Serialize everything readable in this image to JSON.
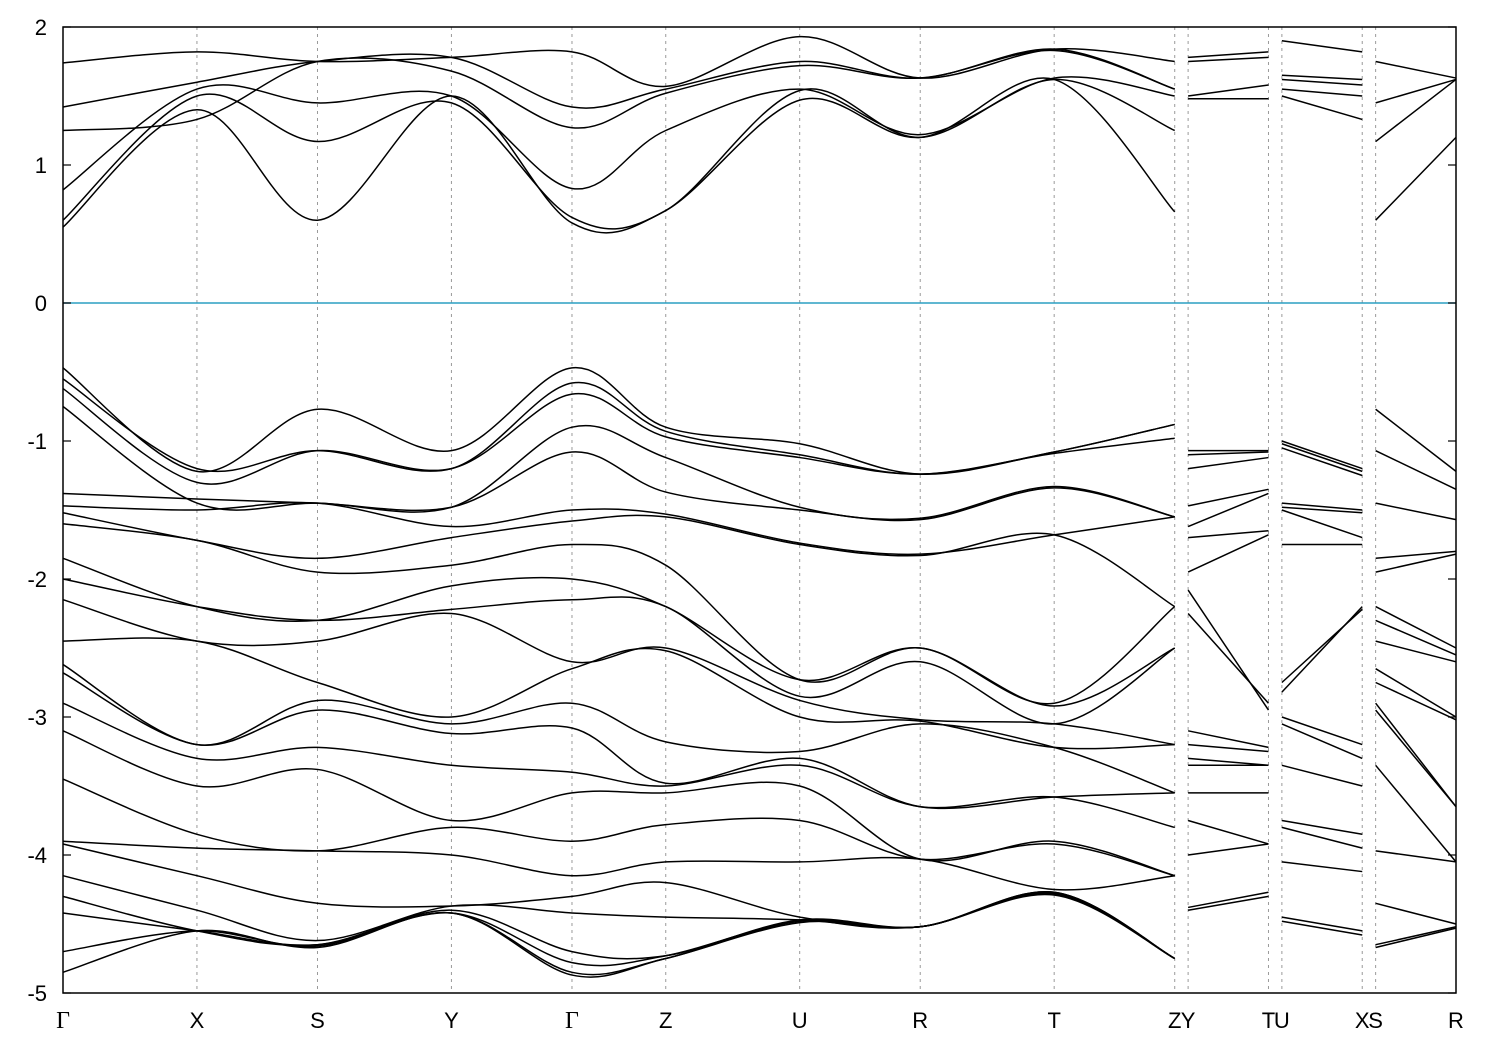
{
  "chart_data": {
    "type": "line",
    "title": "",
    "xlabel": "",
    "ylabel": "",
    "ylim": [
      -5,
      2
    ],
    "yticks": [
      "2",
      "1",
      "0",
      "-1",
      "-2",
      "-3",
      "-4",
      "-5"
    ],
    "ytick_values": [
      2,
      1,
      0,
      -1,
      -2,
      -3,
      -4,
      -5
    ],
    "grid": "vertical dotted lines at high-symmetry points",
    "legend": "none",
    "fermi_level": 0,
    "fermi_color": "#2b9fc2",
    "kpath": [
      {
        "label": "Γ",
        "x": 0.0
      },
      {
        "label": "X",
        "x": 1.0
      },
      {
        "label": "S",
        "x": 1.9
      },
      {
        "label": "Y",
        "x": 2.9
      },
      {
        "label": "Γ",
        "x": 3.8
      },
      {
        "label": "Z",
        "x": 4.5
      },
      {
        "label": "U",
        "x": 5.5
      },
      {
        "label": "R",
        "x": 6.4
      },
      {
        "label": "T",
        "x": 7.4
      },
      {
        "label": "Z",
        "x": 8.3
      },
      {
        "label": "Y",
        "x": 8.4
      },
      {
        "label": "T",
        "x": 9.0
      },
      {
        "label": "U",
        "x": 9.1
      },
      {
        "label": "X",
        "x": 9.7
      },
      {
        "label": "S",
        "x": 9.8
      },
      {
        "label": "R",
        "x": 10.4
      }
    ],
    "xlim": [
      0,
      10.4
    ],
    "segments": [
      {
        "x": [
          0.0,
          8.3
        ],
        "bands": [
          [
            0.55,
            1.4,
            0.6,
            1.5,
            0.58,
            0.67,
            1.47,
            1.2,
            1.62,
            0.66
          ],
          [
            0.6,
            1.5,
            1.17,
            1.45,
            0.62,
            0.67,
            1.54,
            1.2,
            1.62,
            1.25
          ],
          [
            0.82,
            1.55,
            1.45,
            1.5,
            0.83,
            1.25,
            1.55,
            1.22,
            1.63,
            1.5
          ],
          [
            1.25,
            1.33,
            1.75,
            1.68,
            1.27,
            1.52,
            1.72,
            1.63,
            1.83,
            1.55
          ],
          [
            1.42,
            1.6,
            1.75,
            1.78,
            1.42,
            1.55,
            1.75,
            1.63,
            1.84,
            1.55
          ],
          [
            1.74,
            1.82,
            1.75,
            1.78,
            1.82,
            1.57,
            1.93,
            1.63,
            1.84,
            1.75
          ],
          [
            -0.47,
            -1.22,
            -0.77,
            -1.07,
            -0.47,
            -0.9,
            -1.02,
            -1.24,
            -1.08,
            -0.88
          ],
          [
            -0.55,
            -1.2,
            -1.07,
            -1.2,
            -0.58,
            -0.93,
            -1.1,
            -1.24,
            -1.08,
            -0.88
          ],
          [
            -0.62,
            -1.3,
            -1.07,
            -1.2,
            -0.66,
            -0.97,
            -1.12,
            -1.24,
            -1.09,
            -0.98
          ],
          [
            -0.75,
            -1.45,
            -1.45,
            -1.48,
            -0.9,
            -1.12,
            -1.48,
            -1.56,
            -1.33,
            -1.55
          ],
          [
            -1.38,
            -1.42,
            -1.45,
            -1.48,
            -1.08,
            -1.37,
            -1.5,
            -1.57,
            -1.34,
            -1.55
          ],
          [
            -1.47,
            -1.5,
            -1.45,
            -1.62,
            -1.5,
            -1.53,
            -1.74,
            -1.82,
            -1.68,
            -1.55
          ],
          [
            -1.52,
            -1.72,
            -1.85,
            -1.7,
            -1.58,
            -1.55,
            -1.75,
            -1.83,
            -1.68,
            -2.2
          ],
          [
            -1.6,
            -1.72,
            -1.95,
            -1.9,
            -1.75,
            -1.9,
            -2.73,
            -2.5,
            -2.9,
            -2.2
          ],
          [
            -1.85,
            -2.2,
            -2.3,
            -2.05,
            -2.0,
            -2.2,
            -2.73,
            -2.5,
            -2.92,
            -2.5
          ],
          [
            -2.0,
            -2.2,
            -2.3,
            -2.22,
            -2.15,
            -2.2,
            -2.85,
            -2.6,
            -3.05,
            -2.5
          ],
          [
            -2.15,
            -2.45,
            -2.45,
            -2.25,
            -2.6,
            -2.5,
            -2.88,
            -3.02,
            -3.05,
            -3.2
          ],
          [
            -2.45,
            -2.45,
            -2.75,
            -3.0,
            -2.65,
            -2.52,
            -3.0,
            -3.03,
            -3.22,
            -3.2
          ],
          [
            -2.62,
            -3.2,
            -2.88,
            -3.05,
            -2.9,
            -3.18,
            -3.25,
            -3.05,
            -3.22,
            -3.55
          ],
          [
            -2.68,
            -3.2,
            -2.95,
            -3.12,
            -3.08,
            -3.48,
            -3.3,
            -3.65,
            -3.58,
            -3.55
          ],
          [
            -2.9,
            -3.3,
            -3.22,
            -3.35,
            -3.4,
            -3.5,
            -3.35,
            -3.65,
            -3.58,
            -3.8
          ],
          [
            -3.1,
            -3.5,
            -3.38,
            -3.75,
            -3.55,
            -3.55,
            -3.5,
            -4.03,
            -3.9,
            -4.15
          ],
          [
            -3.45,
            -3.85,
            -3.97,
            -3.8,
            -3.9,
            -3.78,
            -3.75,
            -4.03,
            -3.92,
            -4.15
          ],
          [
            -3.9,
            -3.95,
            -3.97,
            -4.0,
            -4.15,
            -4.05,
            -4.05,
            -4.03,
            -4.25,
            -4.15
          ],
          [
            -3.92,
            -4.15,
            -4.35,
            -4.37,
            -4.3,
            -4.2,
            -4.45,
            -4.52,
            -4.27,
            -4.75
          ],
          [
            -4.15,
            -4.4,
            -4.62,
            -4.37,
            -4.42,
            -4.45,
            -4.47,
            -4.52,
            -4.27,
            -4.75
          ],
          [
            -4.3,
            -4.55,
            -4.65,
            -4.4,
            -4.7,
            -4.73,
            -4.47,
            -4.52,
            -4.28,
            -4.75
          ],
          [
            -4.42,
            -4.55,
            -4.65,
            -4.42,
            -4.78,
            -4.73,
            -4.48,
            -4.52,
            -4.28,
            -4.75
          ],
          [
            -4.7,
            -4.55,
            -4.66,
            -4.42,
            -4.85,
            -4.75,
            -4.48,
            -4.52,
            -4.28,
            -4.75
          ],
          [
            -4.85,
            -4.55,
            -4.67,
            -4.42,
            -4.87,
            -4.75,
            -4.49,
            -4.52,
            -4.29,
            -4.75
          ]
        ]
      },
      {
        "x": [
          8.4,
          9.0
        ],
        "bands": [
          [
            1.48,
            1.48
          ],
          [
            1.5,
            1.58
          ],
          [
            1.75,
            1.78
          ],
          [
            1.78,
            1.82
          ],
          [
            -1.07,
            -1.07
          ],
          [
            -1.1,
            -1.08
          ],
          [
            -1.2,
            -1.12
          ],
          [
            -1.47,
            -1.35
          ],
          [
            -1.62,
            -1.38
          ],
          [
            -1.7,
            -1.65
          ],
          [
            -1.95,
            -1.68
          ],
          [
            -2.08,
            -2.95
          ],
          [
            -2.25,
            -2.9
          ],
          [
            -3.1,
            -3.22
          ],
          [
            -3.2,
            -3.25
          ],
          [
            -3.3,
            -3.35
          ],
          [
            -3.35,
            -3.35
          ],
          [
            -3.55,
            -3.55
          ],
          [
            -3.75,
            -3.92
          ],
          [
            -4.0,
            -3.92
          ],
          [
            -4.38,
            -4.27
          ],
          [
            -4.4,
            -4.3
          ]
        ]
      },
      {
        "x": [
          9.1,
          9.7
        ],
        "bands": [
          [
            1.5,
            1.33
          ],
          [
            1.55,
            1.5
          ],
          [
            1.62,
            1.58
          ],
          [
            1.65,
            1.62
          ],
          [
            1.9,
            1.82
          ],
          [
            -1.0,
            -1.2
          ],
          [
            -1.02,
            -1.22
          ],
          [
            -1.05,
            -1.25
          ],
          [
            -1.45,
            -1.5
          ],
          [
            -1.48,
            -1.52
          ],
          [
            -1.5,
            -1.7
          ],
          [
            -1.75,
            -1.75
          ],
          [
            -2.75,
            -2.22
          ],
          [
            -2.82,
            -2.2
          ],
          [
            -3.0,
            -3.2
          ],
          [
            -3.05,
            -3.3
          ],
          [
            -3.35,
            -3.5
          ],
          [
            -3.75,
            -3.85
          ],
          [
            -3.8,
            -3.95
          ],
          [
            -4.05,
            -4.12
          ],
          [
            -4.45,
            -4.55
          ],
          [
            -4.48,
            -4.58
          ]
        ]
      },
      {
        "x": [
          9.8,
          10.4
        ],
        "bands": [
          [
            0.6,
            1.2
          ],
          [
            1.17,
            1.62
          ],
          [
            1.45,
            1.62
          ],
          [
            1.75,
            1.63
          ],
          [
            -0.77,
            -1.22
          ],
          [
            -1.07,
            -1.35
          ],
          [
            -1.45,
            -1.57
          ],
          [
            -1.85,
            -1.8
          ],
          [
            -1.95,
            -1.82
          ],
          [
            -2.2,
            -2.5
          ],
          [
            -2.3,
            -2.55
          ],
          [
            -2.45,
            -2.6
          ],
          [
            -2.65,
            -3.0
          ],
          [
            -2.75,
            -3.02
          ],
          [
            -2.9,
            -3.65
          ],
          [
            -2.95,
            -3.65
          ],
          [
            -3.35,
            -4.05
          ],
          [
            -3.97,
            -4.05
          ],
          [
            -4.35,
            -4.5
          ],
          [
            -4.65,
            -4.52
          ],
          [
            -4.67,
            -4.53
          ]
        ]
      }
    ]
  }
}
